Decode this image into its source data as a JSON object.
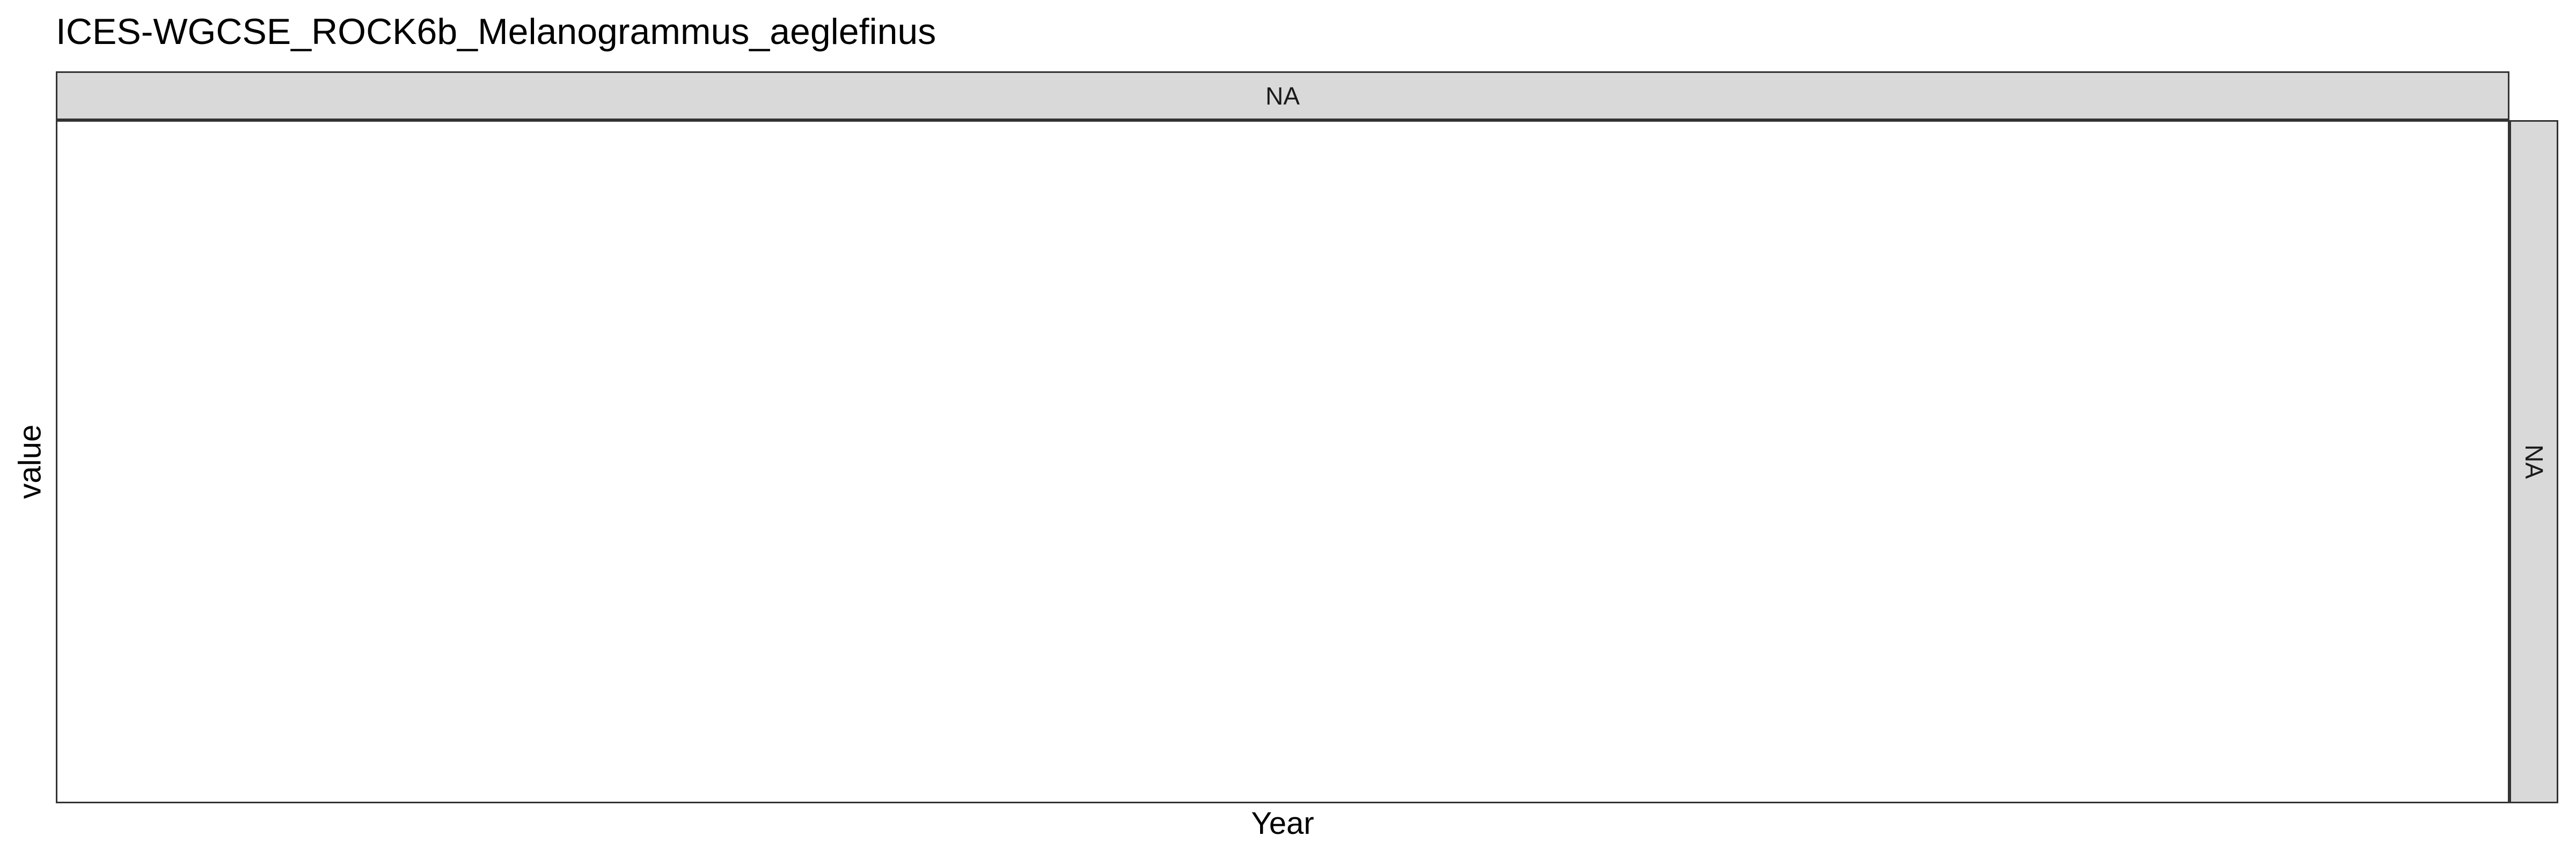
{
  "chart_data": {
    "type": "line",
    "title": "ICES-WGCSE_ROCK6b_Melanogrammus_aeglefinus",
    "xlabel": "Year",
    "ylabel": "value",
    "facet_column_label": "NA",
    "facet_row_label": "NA",
    "series": [],
    "grid": false
  }
}
